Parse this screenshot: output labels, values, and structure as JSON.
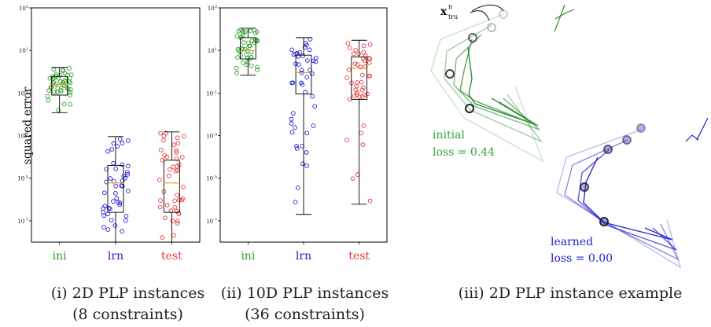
{
  "chart_data": [
    {
      "type": "boxplot",
      "ylabel": "squared error",
      "yscale": "log",
      "ylim": [
        1e-08,
        1000
      ],
      "yticks": [
        "10^{-7}",
        "10^{-5}",
        "10^{-3}",
        "10^{-1}",
        "10^{1}",
        "10^{3}"
      ],
      "categories": [
        "ini",
        "lrn",
        "test"
      ],
      "category_colors": [
        "#2ca02c",
        "#1f1fd6",
        "#e8393a"
      ],
      "boxes": [
        {
          "name": "ini",
          "whisker_low": 0.012,
          "q1": 0.08,
          "median": 0.25,
          "q3": 0.6,
          "whisker_high": 1.6
        },
        {
          "name": "lrn",
          "whisker_low": 1e-08,
          "q1": 2.5e-07,
          "median": 6e-06,
          "q3": 4e-05,
          "whisker_high": 0.0009
        },
        {
          "name": "test",
          "whisker_low": 1e-08,
          "q1": 2.5e-07,
          "median": 6e-06,
          "q3": 7e-05,
          "whisker_high": 0.0015
        }
      ],
      "caption_line1": "(i) 2D PLP instances",
      "caption_line2": "(8 constraints)"
    },
    {
      "type": "boxplot",
      "yscale": "log",
      "ylim": [
        1e-08,
        1000
      ],
      "yticks": [
        "10^{-7}",
        "10^{-5}",
        "10^{-3}",
        "10^{-1}",
        "10^{1}",
        "10^{3}"
      ],
      "categories": [
        "ini",
        "lrn",
        "test"
      ],
      "category_colors": [
        "#2ca02c",
        "#1f1fd6",
        "#e8393a"
      ],
      "boxes": [
        {
          "name": "ini",
          "whisker_low": 0.7,
          "q1": 4,
          "median": 10,
          "q3": 40,
          "whisker_high": 110
        },
        {
          "name": "lrn",
          "whisker_low": 2e-07,
          "q1": 0.09,
          "median": 0.9,
          "q3": 6,
          "whisker_high": 40
        },
        {
          "name": "test",
          "whisker_low": 6e-07,
          "q1": 0.05,
          "median": 1.5,
          "q3": 5,
          "whisker_high": 30
        }
      ],
      "caption_line1": "(ii) 10D PLP instances",
      "caption_line2": "(36 constraints)"
    }
  ],
  "panel3": {
    "x_label_main": "x",
    "x_label_sup": "n",
    "x_label_sub": "tru",
    "initial_label": "initial",
    "initial_loss": "loss = 0.44",
    "learned_label": "learned",
    "learned_loss": "loss = 0.00",
    "caption": "(iii) 2D PLP instance example",
    "green": "#2e8b2e",
    "blue": "#2020d0"
  }
}
